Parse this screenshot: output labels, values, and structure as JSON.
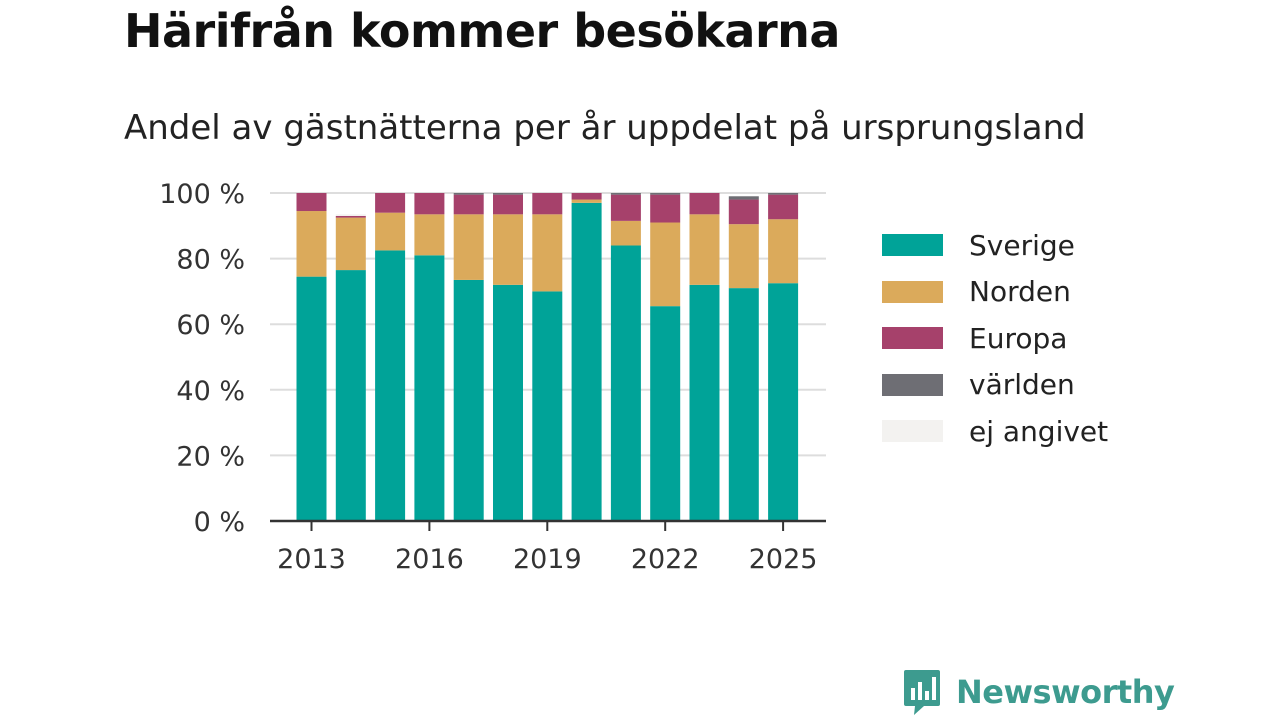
{
  "title": "Härifrån kommer besökarna",
  "subtitle": "Andel av gästnätterna per år uppdelat på ursprungsland",
  "logo_text": "Newsworthy",
  "colors": {
    "sverige": "#00a398",
    "norden": "#dbaa5b",
    "europa": "#a6416b",
    "varlden": "#6e6e74",
    "ej_angivet": "#f3f2f0",
    "logo": "#3d9b8f"
  },
  "chart_data": {
    "type": "bar",
    "stacked": true,
    "categories": [
      "2013",
      "2014",
      "2015",
      "2016",
      "2017",
      "2018",
      "2019",
      "2020",
      "2021",
      "2022",
      "2023",
      "2024",
      "2025"
    ],
    "x_tick_labels": [
      "2013",
      "2016",
      "2019",
      "2022",
      "2025"
    ],
    "y_tick_labels": [
      "0 %",
      "20 %",
      "40 %",
      "60 %",
      "80 %",
      "100 %"
    ],
    "ylim": [
      0,
      100
    ],
    "grid": true,
    "legend_position": "right",
    "series": [
      {
        "name": "Sverige",
        "color": "#00a398",
        "values": [
          74.5,
          76.5,
          82.5,
          81.0,
          73.5,
          72.0,
          70.0,
          97.0,
          84.0,
          65.5,
          72.0,
          71.0,
          72.5
        ]
      },
      {
        "name": "Norden",
        "color": "#dbaa5b",
        "values": [
          20.0,
          16.0,
          11.5,
          12.5,
          20.0,
          21.5,
          23.5,
          1.0,
          7.5,
          25.5,
          21.5,
          19.5,
          19.5
        ]
      },
      {
        "name": "Europa",
        "color": "#a6416b",
        "values": [
          5.5,
          0.5,
          6.0,
          6.5,
          6.0,
          6.0,
          6.5,
          2.0,
          8.0,
          8.5,
          6.5,
          7.5,
          7.5
        ]
      },
      {
        "name": "världen",
        "color": "#6e6e74",
        "values": [
          0.0,
          0.0,
          0.0,
          0.0,
          0.5,
          0.5,
          0.0,
          0.0,
          0.5,
          0.5,
          0.0,
          1.0,
          0.5
        ]
      },
      {
        "name": "ej angivet",
        "color": "#f3f2f0",
        "values": [
          0.0,
          0.5,
          0.0,
          0.0,
          0.0,
          0.0,
          0.0,
          0.0,
          0.0,
          0.0,
          0.0,
          0.0,
          0.0
        ]
      }
    ]
  }
}
